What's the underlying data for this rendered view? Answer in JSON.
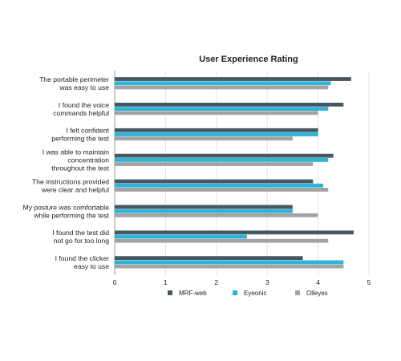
{
  "chart_data": {
    "type": "bar",
    "orientation": "horizontal",
    "title": "User Experience Rating",
    "xlabel": "",
    "ylabel": "",
    "xlim": [
      0,
      5
    ],
    "x_ticks": [
      "0",
      "1",
      "2",
      "3",
      "4",
      "5"
    ],
    "grid": true,
    "legend_position": "bottom",
    "categories": [
      [
        "The portable perimeter",
        "was easy to use"
      ],
      [
        "I found the voice",
        "commands helpful"
      ],
      [
        "I felt confident",
        "performing the test"
      ],
      [
        "I was able to maintain",
        "concentration",
        "throughout the test"
      ],
      [
        "The instructions provided",
        "were clear and helpful"
      ],
      [
        "My posture was comfortable",
        "while performing the test"
      ],
      [
        "I found the test did",
        "not go for too long"
      ],
      [
        "I found the clicker",
        "easy to use"
      ]
    ],
    "series": [
      {
        "name": "MRF-web",
        "color": "#485863",
        "values": [
          4.65,
          4.5,
          4.0,
          4.3,
          3.9,
          3.5,
          4.7,
          3.7
        ]
      },
      {
        "name": "Eyeonic",
        "color": "#2eb4d8",
        "values": [
          4.25,
          4.2,
          4.0,
          4.2,
          4.1,
          3.5,
          2.6,
          4.5
        ]
      },
      {
        "name": "Olleyes",
        "color": "#a3a3a3",
        "values": [
          4.2,
          4.0,
          3.5,
          3.9,
          4.2,
          4.0,
          4.2,
          4.5
        ]
      }
    ]
  }
}
